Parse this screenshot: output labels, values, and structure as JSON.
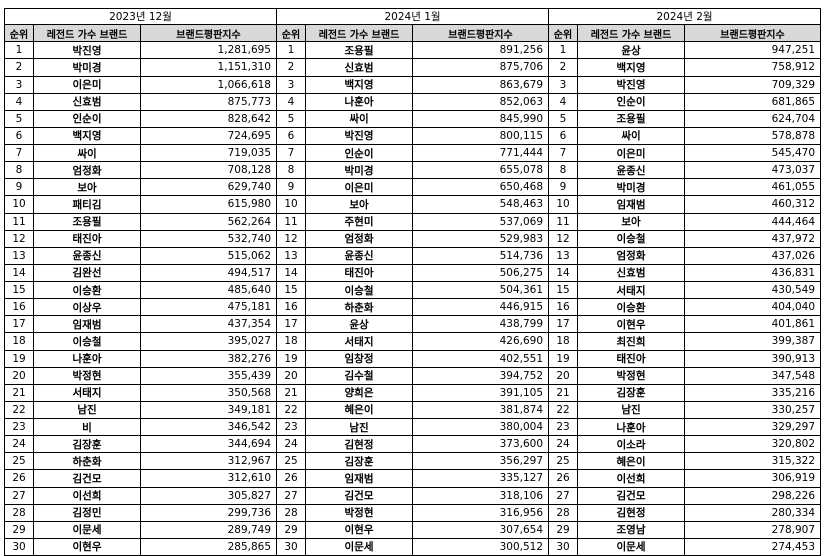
{
  "headers": [
    "순위",
    "레전드 가수 브랜드",
    "브랜드평판지수"
  ],
  "panels": [
    {
      "month": "2023년 12월",
      "rows": [
        [
          "1",
          "박진영",
          "1,281,695"
        ],
        [
          "2",
          "박미경",
          "1,151,310"
        ],
        [
          "3",
          "이은미",
          "1,066,618"
        ],
        [
          "4",
          "신효범",
          "875,773"
        ],
        [
          "5",
          "인순이",
          "828,642"
        ],
        [
          "6",
          "백지영",
          "724,695"
        ],
        [
          "7",
          "싸이",
          "719,035"
        ],
        [
          "8",
          "엄정화",
          "708,128"
        ],
        [
          "9",
          "보아",
          "629,740"
        ],
        [
          "10",
          "패티김",
          "615,980"
        ],
        [
          "11",
          "조용필",
          "562,264"
        ],
        [
          "12",
          "태진아",
          "532,740"
        ],
        [
          "13",
          "윤종신",
          "515,062"
        ],
        [
          "14",
          "김완선",
          "494,517"
        ],
        [
          "15",
          "이승환",
          "485,640"
        ],
        [
          "16",
          "이상우",
          "475,181"
        ],
        [
          "17",
          "임재범",
          "437,354"
        ],
        [
          "18",
          "이승철",
          "395,027"
        ],
        [
          "19",
          "나훈아",
          "382,276"
        ],
        [
          "20",
          "박정현",
          "355,439"
        ],
        [
          "21",
          "서태지",
          "350,568"
        ],
        [
          "22",
          "남진",
          "349,181"
        ],
        [
          "23",
          "비",
          "346,542"
        ],
        [
          "24",
          "김장훈",
          "344,694"
        ],
        [
          "25",
          "하춘화",
          "312,967"
        ],
        [
          "26",
          "김건모",
          "312,610"
        ],
        [
          "27",
          "이선희",
          "305,827"
        ],
        [
          "28",
          "김정민",
          "299,736"
        ],
        [
          "29",
          "이문세",
          "289,749"
        ],
        [
          "30",
          "이현우",
          "285,865"
        ]
      ]
    },
    {
      "month": "2024년 1월",
      "rows": [
        [
          "1",
          "조용필",
          "891,256"
        ],
        [
          "2",
          "신효범",
          "875,706"
        ],
        [
          "3",
          "백지영",
          "863,679"
        ],
        [
          "4",
          "나훈아",
          "852,063"
        ],
        [
          "5",
          "싸이",
          "845,990"
        ],
        [
          "6",
          "박진영",
          "800,115"
        ],
        [
          "7",
          "인순이",
          "771,444"
        ],
        [
          "8",
          "박미경",
          "655,078"
        ],
        [
          "9",
          "이은미",
          "650,468"
        ],
        [
          "10",
          "보아",
          "548,463"
        ],
        [
          "11",
          "주현미",
          "537,069"
        ],
        [
          "12",
          "엄정화",
          "529,983"
        ],
        [
          "13",
          "윤종신",
          "514,736"
        ],
        [
          "14",
          "태진아",
          "506,275"
        ],
        [
          "15",
          "이승철",
          "504,361"
        ],
        [
          "16",
          "하춘화",
          "446,915"
        ],
        [
          "17",
          "윤상",
          "438,799"
        ],
        [
          "18",
          "서태지",
          "426,690"
        ],
        [
          "19",
          "임창정",
          "402,551"
        ],
        [
          "20",
          "김수철",
          "394,752"
        ],
        [
          "21",
          "양희은",
          "391,105"
        ],
        [
          "22",
          "혜은이",
          "381,874"
        ],
        [
          "23",
          "남진",
          "380,004"
        ],
        [
          "24",
          "김현정",
          "373,600"
        ],
        [
          "25",
          "김장훈",
          "356,297"
        ],
        [
          "26",
          "임재범",
          "335,127"
        ],
        [
          "27",
          "김건모",
          "318,106"
        ],
        [
          "28",
          "박정현",
          "316,956"
        ],
        [
          "29",
          "이현우",
          "307,654"
        ],
        [
          "30",
          "이문세",
          "300,512"
        ]
      ]
    },
    {
      "month": "2024년 2월",
      "rows": [
        [
          "1",
          "윤상",
          "947,251"
        ],
        [
          "2",
          "백지영",
          "758,912"
        ],
        [
          "3",
          "박진영",
          "709,329"
        ],
        [
          "4",
          "인순이",
          "681,865"
        ],
        [
          "5",
          "조용필",
          "624,704"
        ],
        [
          "6",
          "싸이",
          "578,878"
        ],
        [
          "7",
          "이은미",
          "545,470"
        ],
        [
          "8",
          "윤종신",
          "473,037"
        ],
        [
          "9",
          "박미경",
          "461,055"
        ],
        [
          "10",
          "임재범",
          "460,312"
        ],
        [
          "11",
          "보아",
          "444,464"
        ],
        [
          "12",
          "이승철",
          "437,972"
        ],
        [
          "13",
          "엄정화",
          "437,026"
        ],
        [
          "14",
          "신효범",
          "436,831"
        ],
        [
          "15",
          "서태지",
          "430,549"
        ],
        [
          "16",
          "이승환",
          "404,040"
        ],
        [
          "17",
          "이현우",
          "401,861"
        ],
        [
          "18",
          "최진희",
          "399,387"
        ],
        [
          "19",
          "태진아",
          "390,913"
        ],
        [
          "20",
          "박정현",
          "347,548"
        ],
        [
          "21",
          "김장훈",
          "335,216"
        ],
        [
          "22",
          "남진",
          "330,257"
        ],
        [
          "23",
          "나훈아",
          "329,297"
        ],
        [
          "24",
          "이소라",
          "320,802"
        ],
        [
          "25",
          "혜은이",
          "315,322"
        ],
        [
          "26",
          "이선희",
          "306,919"
        ],
        [
          "27",
          "김건모",
          "298,226"
        ],
        [
          "28",
          "김현정",
          "280,334"
        ],
        [
          "29",
          "조영남",
          "278,907"
        ],
        [
          "30",
          "이문세",
          "274,453"
        ]
      ]
    }
  ]
}
